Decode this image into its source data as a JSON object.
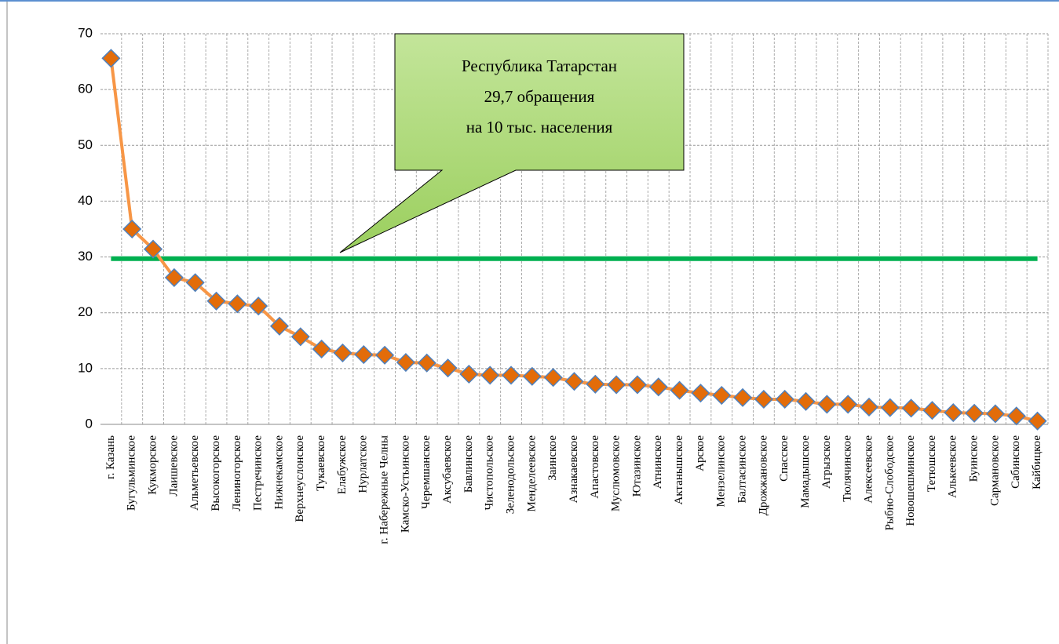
{
  "chart_data": {
    "type": "line",
    "categories": [
      "г. Казань",
      "Бугульминское",
      "Кукморское",
      "Лаишевское",
      "Альметьевское",
      "Высокогорское",
      "Лениногорское",
      "Пестречинское",
      "Нижнекамское",
      "Верхнеуслонское",
      "Тукаевское",
      "Елабужское",
      "Нурлатское",
      "г. Набережные Челны",
      "Камско-Устьинское",
      "Черемшанское",
      "Аксубаевское",
      "Бавлинское",
      "Чистопольское",
      "Зеленодольское",
      "Менделеевское",
      "Заинское",
      "Азнакаевское",
      "Апастовское",
      "Муслюмовское",
      "Ютазинское",
      "Атнинское",
      "Актанышское",
      "Арское",
      "Мензелинское",
      "Балтасинское",
      "Дрожжановское",
      "Спасское",
      "Мамадышское",
      "Агрызское",
      "Тюлячинское",
      "Алексеевское",
      "Рыбно-Слободское",
      "Новошешминское",
      "Тетюшское",
      "Алькеевское",
      "Буинское",
      "Сармановское",
      "Сабинское",
      "Кайбицкое"
    ],
    "values": [
      65.6,
      35,
      31.4,
      26.3,
      25.4,
      22.1,
      21.6,
      21.2,
      17.6,
      15.7,
      13.5,
      12.8,
      12.5,
      12.4,
      11.1,
      11.0,
      10.1,
      9.0,
      8.8,
      8.8,
      8.6,
      8.4,
      7.7,
      7.2,
      7.1,
      7.1,
      6.7,
      6.1,
      5.6,
      5.2,
      4.8,
      4.5,
      4.5,
      4.1,
      3.6,
      3.6,
      3.1,
      3.0,
      2.9,
      2.5,
      2.1,
      2.0,
      1.9,
      1.5,
      0.6
    ],
    "color": "#f79646",
    "marker_color": "#e36c09",
    "reference": {
      "value": 29.7,
      "color": "#00b050"
    },
    "annotation": [
      "Республика Татарстан",
      "29,7 обращения",
      "на 10 тыс. населения"
    ],
    "ylim": [
      0,
      70
    ],
    "yticks": [
      0,
      10,
      20,
      30,
      40,
      50,
      60,
      70
    ],
    "grid": true
  }
}
